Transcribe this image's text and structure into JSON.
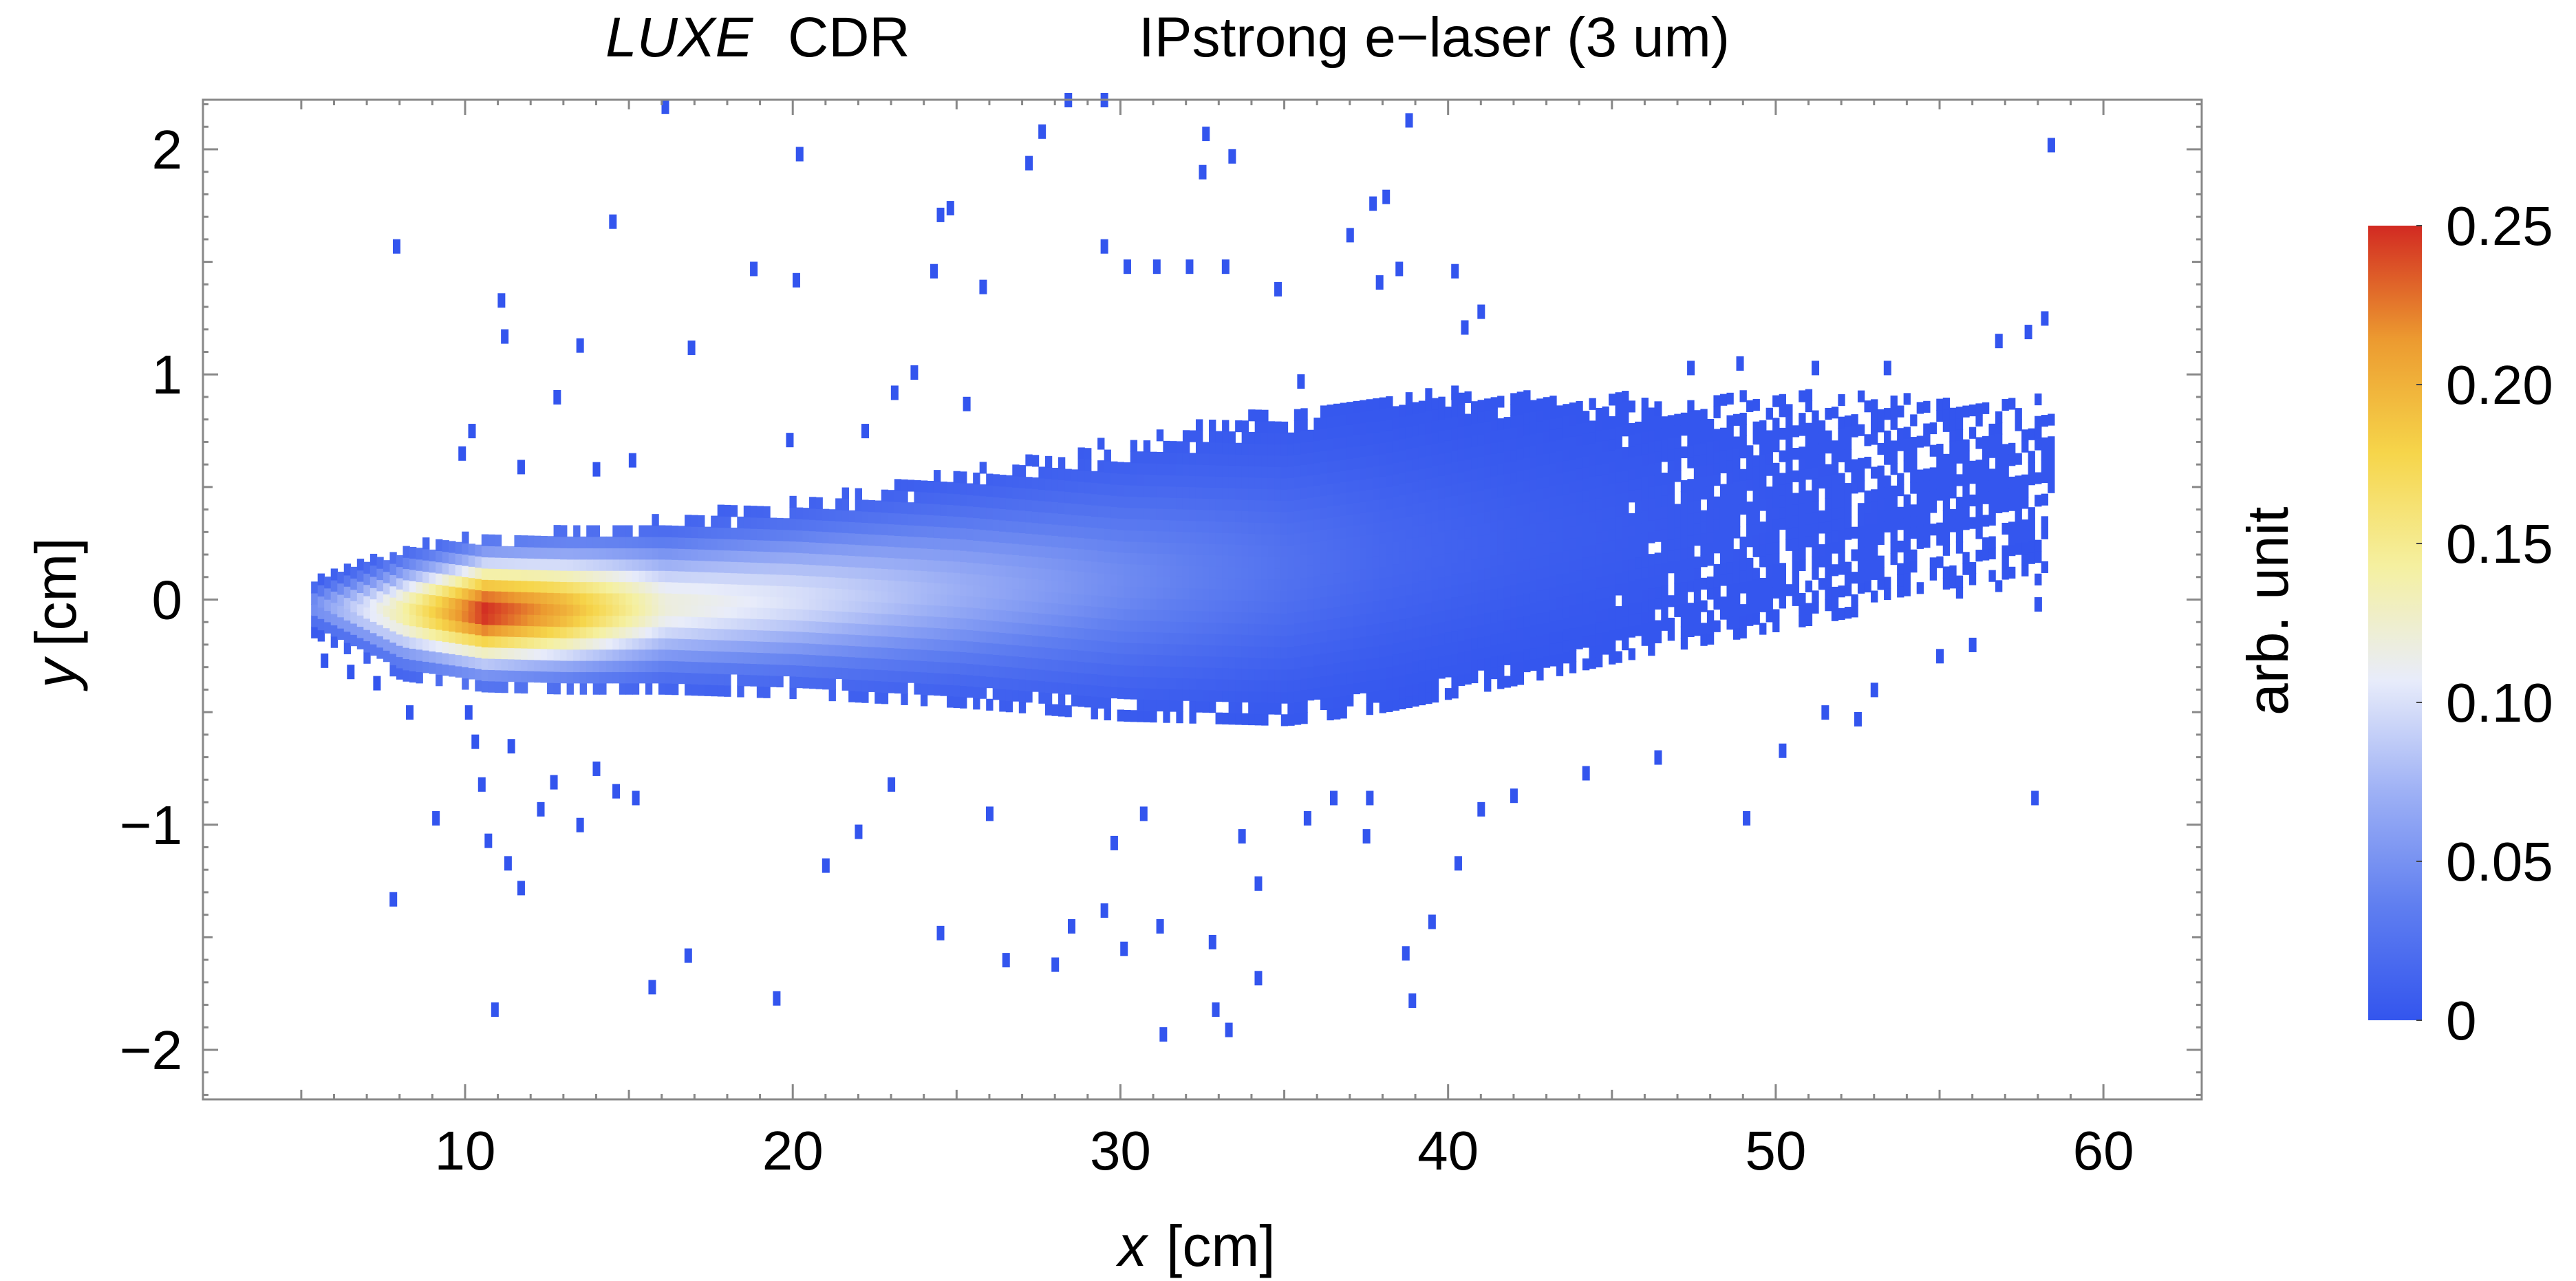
{
  "chart_data": {
    "type": "heatmap",
    "title": {
      "italic_part": "LUXE",
      "plain_part": "CDR",
      "subtitle": "IPstrong e−laser (3 um)"
    },
    "xlabel": {
      "symbol": "x",
      "unit": "[cm]"
    },
    "ylabel": {
      "symbol": "y",
      "unit": "[cm]"
    },
    "xlim": [
      2,
      63
    ],
    "ylim": [
      -2.22,
      2.22
    ],
    "x_ticks": [
      10,
      20,
      30,
      40,
      50,
      60
    ],
    "x_tick_labels": [
      "10",
      "20",
      "30",
      "40",
      "50",
      "60"
    ],
    "y_ticks": [
      -2,
      -1,
      0,
      1,
      2
    ],
    "y_tick_labels": [
      "−2",
      "−1",
      "0",
      "1",
      "2"
    ],
    "colorbar": {
      "label": "arb. unit",
      "range": [
        0,
        0.25
      ],
      "ticks": [
        0,
        0.05,
        0.1,
        0.15,
        0.2,
        0.25
      ],
      "tick_labels": [
        "0",
        "0.05",
        "0.10",
        "0.15",
        "0.20",
        "0.25"
      ],
      "colors": [
        "#3355ee",
        "#5f7ef0",
        "#9db0f5",
        "#e8ecfa",
        "#f5f0a0",
        "#f6d54a",
        "#ec9a30",
        "#d22a22"
      ]
    },
    "band_profile": {
      "description_free": true,
      "x_points": [
        5.3,
        8,
        10.5,
        13,
        16,
        20,
        25,
        30,
        35,
        38,
        42,
        46,
        50,
        54,
        58.5
      ],
      "center_y": [
        -0.05,
        -0.08,
        -0.08,
        -0.07,
        -0.05,
        -0.02,
        0.02,
        0.06,
        0.12,
        0.18,
        0.24,
        0.3,
        0.36,
        0.42,
        0.48
      ],
      "half_width": [
        0.12,
        0.28,
        0.33,
        0.35,
        0.37,
        0.42,
        0.5,
        0.6,
        0.68,
        0.68,
        0.62,
        0.55,
        0.5,
        0.45,
        0.4
      ],
      "peak_value": [
        0.05,
        0.14,
        0.25,
        0.2,
        0.12,
        0.1,
        0.07,
        0.045,
        0.025,
        0.015,
        0.008,
        0.004,
        0.002,
        0.001,
        0.0008
      ]
    },
    "outliers": [
      [
        7.9,
        1.57
      ],
      [
        10.2,
        0.75
      ],
      [
        11.1,
        1.33
      ],
      [
        11.2,
        1.17
      ],
      [
        12.8,
        0.9
      ],
      [
        13.5,
        1.13
      ],
      [
        14.5,
        1.68
      ],
      [
        16.1,
        2.19
      ],
      [
        16.9,
        1.12
      ],
      [
        18.8,
        1.47
      ],
      [
        19.9,
        0.71
      ],
      [
        20.2,
        1.98
      ],
      [
        20.1,
        1.42
      ],
      [
        22.2,
        0.75
      ],
      [
        23.1,
        0.92
      ],
      [
        23.7,
        1.01
      ],
      [
        24.3,
        1.46
      ],
      [
        24.5,
        1.71
      ],
      [
        24.8,
        1.74
      ],
      [
        25.3,
        0.87
      ],
      [
        25.8,
        1.39
      ],
      [
        27.2,
        1.94
      ],
      [
        27.6,
        2.08
      ],
      [
        28.4,
        2.22
      ],
      [
        29.5,
        2.22
      ],
      [
        29.5,
        1.57
      ],
      [
        30.2,
        1.48
      ],
      [
        31.1,
        1.48
      ],
      [
        32.1,
        1.48
      ],
      [
        32.5,
        1.9
      ],
      [
        32.6,
        2.07
      ],
      [
        33.2,
        1.48
      ],
      [
        33.4,
        1.97
      ],
      [
        34.8,
        1.38
      ],
      [
        35.5,
        0.97
      ],
      [
        37.0,
        1.62
      ],
      [
        37.7,
        1.76
      ],
      [
        37.9,
        1.41
      ],
      [
        38.1,
        1.79
      ],
      [
        38.5,
        1.47
      ],
      [
        38.8,
        2.13
      ],
      [
        40.2,
        1.46
      ],
      [
        40.5,
        1.21
      ],
      [
        40.2,
        0.92
      ],
      [
        41.0,
        1.28
      ],
      [
        46.4,
        0.85
      ],
      [
        47.4,
        1.03
      ],
      [
        48.9,
        1.05
      ],
      [
        51.2,
        1.03
      ],
      [
        53.4,
        1.03
      ],
      [
        56.8,
        1.15
      ],
      [
        57.7,
        1.19
      ],
      [
        58.2,
        1.25
      ],
      [
        58.4,
        2.02
      ],
      [
        9.9,
        0.65
      ],
      [
        11.7,
        0.59
      ],
      [
        14.0,
        0.58
      ],
      [
        15.1,
        0.62
      ],
      [
        5.7,
        -0.27
      ],
      [
        6.5,
        -0.32
      ],
      [
        7.3,
        -0.37
      ],
      [
        8.3,
        -0.5
      ],
      [
        9.1,
        -0.97
      ],
      [
        10.1,
        -0.5
      ],
      [
        10.3,
        -0.63
      ],
      [
        10.5,
        -0.82
      ],
      [
        10.7,
        -1.07
      ],
      [
        11.3,
        -1.17
      ],
      [
        11.4,
        -0.65
      ],
      [
        11.7,
        -1.28
      ],
      [
        12.3,
        -0.93
      ],
      [
        12.7,
        -0.81
      ],
      [
        13.5,
        -1.0
      ],
      [
        14.0,
        -0.75
      ],
      [
        14.6,
        -0.85
      ],
      [
        15.2,
        -0.88
      ],
      [
        7.8,
        -1.33
      ],
      [
        10.9,
        -1.82
      ],
      [
        16.8,
        -1.58
      ],
      [
        15.7,
        -1.72
      ],
      [
        19.5,
        -1.77
      ],
      [
        21.0,
        -1.18
      ],
      [
        22.0,
        -1.03
      ],
      [
        23.0,
        -0.82
      ],
      [
        24.5,
        -1.48
      ],
      [
        26.0,
        -0.95
      ],
      [
        26.5,
        -1.6
      ],
      [
        28.0,
        -1.62
      ],
      [
        28.5,
        -1.45
      ],
      [
        29.5,
        -1.38
      ],
      [
        30.1,
        -1.55
      ],
      [
        31.3,
        -1.93
      ],
      [
        32.8,
        -1.52
      ],
      [
        32.9,
        -1.82
      ],
      [
        33.3,
        -1.91
      ],
      [
        34.2,
        -1.26
      ],
      [
        34.2,
        -1.68
      ],
      [
        31.2,
        -1.45
      ],
      [
        29.8,
        -1.08
      ],
      [
        30.7,
        -0.95
      ],
      [
        33.7,
        -1.05
      ],
      [
        35.7,
        -0.97
      ],
      [
        37.5,
        -1.05
      ],
      [
        38.7,
        -1.57
      ],
      [
        38.9,
        -1.78
      ],
      [
        39.5,
        -1.43
      ],
      [
        40.3,
        -1.17
      ],
      [
        41.0,
        -0.93
      ],
      [
        36.5,
        -0.88
      ],
      [
        37.6,
        -0.88
      ],
      [
        42.0,
        -0.87
      ],
      [
        44.2,
        -0.77
      ],
      [
        46.4,
        -0.7
      ],
      [
        49.1,
        -0.97
      ],
      [
        50.2,
        -0.67
      ],
      [
        51.5,
        -0.5
      ],
      [
        52.5,
        -0.53
      ],
      [
        56.0,
        -0.2
      ],
      [
        57.9,
        -0.88
      ],
      [
        58.0,
        -0.02
      ],
      [
        55.0,
        -0.25
      ],
      [
        53.0,
        -0.4
      ]
    ]
  }
}
